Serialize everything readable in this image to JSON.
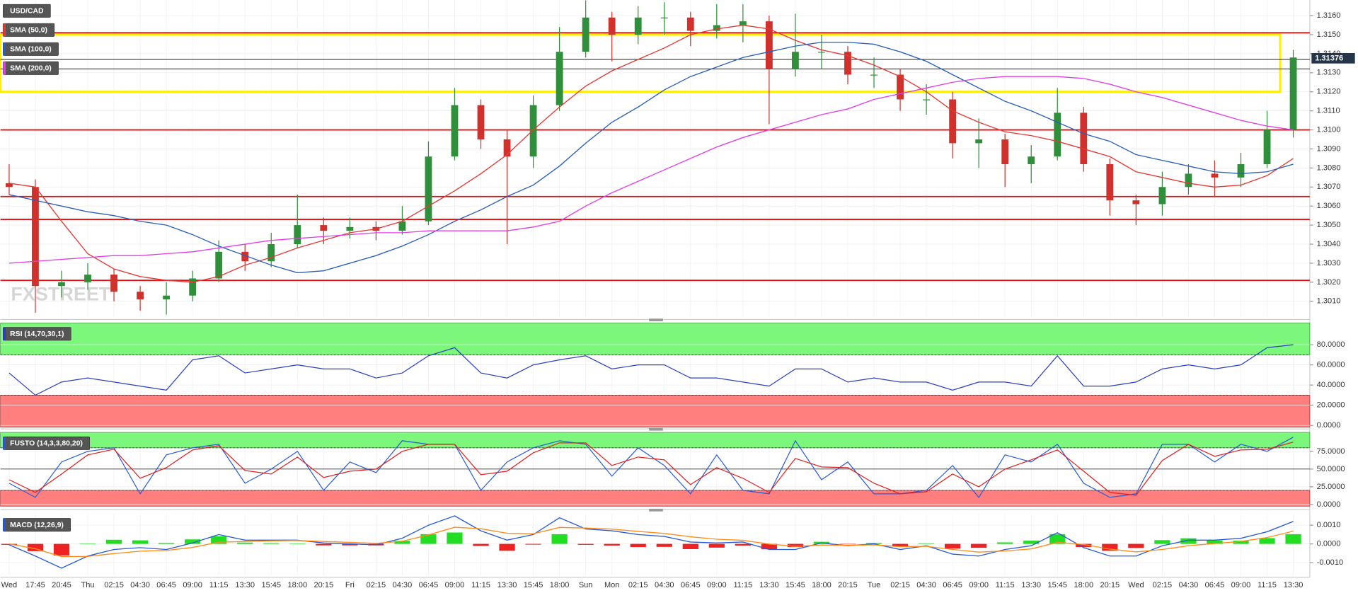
{
  "chart_data": [
    {
      "type": "candlestick",
      "title": "USD/CAD",
      "watermark": "FXSTREET",
      "categories": [
        "Wed",
        "17:45",
        "20:45",
        "Thu",
        "02:15",
        "04:30",
        "06:45",
        "09:00",
        "11:15",
        "13:30",
        "15:45",
        "18:00",
        "20:15",
        "Fri",
        "02:15",
        "04:30",
        "06:45",
        "09:00",
        "11:15",
        "13:30",
        "15:45",
        "18:00",
        "Sun",
        "Mon",
        "02:15",
        "04:30",
        "06:45",
        "09:00",
        "11:15",
        "13:30",
        "15:45",
        "18:00",
        "20:15",
        "Tue",
        "02:15",
        "04:30",
        "06:45",
        "09:00",
        "11:15",
        "13:30",
        "15:45",
        "18:00",
        "20:15",
        "Wed",
        "02:15",
        "04:30",
        "06:45",
        "09:00",
        "11:15",
        "13:30"
      ],
      "ohlc": [
        [
          1.3072,
          1.3082,
          1.3066,
          1.307
        ],
        [
          1.307,
          1.3074,
          1.3004,
          1.3018
        ],
        [
          1.3018,
          1.3026,
          1.3012,
          1.302
        ],
        [
          1.302,
          1.303,
          1.3016,
          1.3024
        ],
        [
          1.3024,
          1.3027,
          1.301,
          1.3015
        ],
        [
          1.3015,
          1.3018,
          1.3005,
          1.3011
        ],
        [
          1.3011,
          1.302,
          1.3003,
          1.3013
        ],
        [
          1.3013,
          1.3026,
          1.301,
          1.3022
        ],
        [
          1.3022,
          1.3042,
          1.302,
          1.3036
        ],
        [
          1.3036,
          1.304,
          1.3026,
          1.3031
        ],
        [
          1.3031,
          1.3046,
          1.3028,
          1.304
        ],
        [
          1.304,
          1.3066,
          1.3038,
          1.305
        ],
        [
          1.305,
          1.3054,
          1.304,
          1.3047
        ],
        [
          1.3047,
          1.3054,
          1.3043,
          1.3049
        ],
        [
          1.3049,
          1.3052,
          1.3042,
          1.3047
        ],
        [
          1.3047,
          1.306,
          1.3045,
          1.3052
        ],
        [
          1.3052,
          1.3094,
          1.305,
          1.3086
        ],
        [
          1.3086,
          1.3122,
          1.3084,
          1.3113
        ],
        [
          1.3113,
          1.3116,
          1.309,
          1.3095
        ],
        [
          1.3095,
          1.31,
          1.304,
          1.3086
        ],
        [
          1.3086,
          1.3118,
          1.308,
          1.3113
        ],
        [
          1.3113,
          1.3154,
          1.311,
          1.3141
        ],
        [
          1.3141,
          1.3168,
          1.3138,
          1.3159
        ],
        [
          1.3159,
          1.3162,
          1.3136,
          1.315
        ],
        [
          1.315,
          1.3165,
          1.3145,
          1.3159
        ],
        [
          1.3159,
          1.3167,
          1.315,
          1.3159
        ],
        [
          1.3159,
          1.3162,
          1.3144,
          1.3152
        ],
        [
          1.3152,
          1.3166,
          1.3148,
          1.3155
        ],
        [
          1.3155,
          1.3166,
          1.3146,
          1.3157
        ],
        [
          1.3157,
          1.316,
          1.3103,
          1.3132
        ],
        [
          1.3132,
          1.3161,
          1.3128,
          1.3141
        ],
        [
          1.3141,
          1.315,
          1.3132,
          1.3141
        ],
        [
          1.3141,
          1.3144,
          1.3124,
          1.3129
        ],
        [
          1.3129,
          1.3138,
          1.3122,
          1.3129
        ],
        [
          1.3129,
          1.3132,
          1.311,
          1.3116
        ],
        [
          1.3116,
          1.3124,
          1.3108,
          1.3116
        ],
        [
          1.3116,
          1.312,
          1.3085,
          1.3093
        ],
        [
          1.3093,
          1.3106,
          1.308,
          1.3095
        ],
        [
          1.3095,
          1.3098,
          1.307,
          1.3082
        ],
        [
          1.3082,
          1.3092,
          1.3072,
          1.3086
        ],
        [
          1.3086,
          1.3122,
          1.3084,
          1.3109
        ],
        [
          1.3109,
          1.3112,
          1.3078,
          1.3082
        ],
        [
          1.3082,
          1.3085,
          1.3055,
          1.3063
        ],
        [
          1.3063,
          1.3066,
          1.305,
          1.3061
        ],
        [
          1.3061,
          1.3078,
          1.3055,
          1.307
        ],
        [
          1.307,
          1.3082,
          1.3066,
          1.3077
        ],
        [
          1.3077,
          1.3084,
          1.3065,
          1.3075
        ],
        [
          1.3075,
          1.3088,
          1.307,
          1.3082
        ],
        [
          1.3082,
          1.311,
          1.308,
          1.31
        ],
        [
          1.31,
          1.3142,
          1.3096,
          1.3138
        ]
      ],
      "up_color": "#2f8f3a",
      "down_color": "#d0312d",
      "series": [
        {
          "name": "SMA (50,0)",
          "color": "#e53935",
          "values": [
            1.3072,
            1.307,
            1.3052,
            1.3035,
            1.3027,
            1.3023,
            1.3021,
            1.302,
            1.3023,
            1.3029,
            1.3033,
            1.3038,
            1.3042,
            1.3046,
            1.3048,
            1.3052,
            1.306,
            1.3068,
            1.3077,
            1.3087,
            1.31,
            1.3112,
            1.3123,
            1.3131,
            1.3137,
            1.3143,
            1.315,
            1.3153,
            1.3155,
            1.3153,
            1.3147,
            1.3142,
            1.3139,
            1.3134,
            1.3128,
            1.312,
            1.311,
            1.3104,
            1.3099,
            1.3097,
            1.3094,
            1.309,
            1.3086,
            1.3078,
            1.3075,
            1.3072,
            1.307,
            1.3071,
            1.3076,
            1.3085
          ]
        },
        {
          "name": "SMA (100,0)",
          "color": "#2b5fb8",
          "values": [
            1.3066,
            1.3063,
            1.306,
            1.3057,
            1.3055,
            1.3052,
            1.305,
            1.3045,
            1.3039,
            1.3034,
            1.3029,
            1.3025,
            1.3026,
            1.303,
            1.3034,
            1.3039,
            1.3045,
            1.3052,
            1.3058,
            1.3065,
            1.3071,
            1.3081,
            1.3093,
            1.3104,
            1.3112,
            1.3121,
            1.3128,
            1.3133,
            1.3138,
            1.3141,
            1.3144,
            1.3146,
            1.3146,
            1.3145,
            1.3141,
            1.3136,
            1.3129,
            1.3122,
            1.3115,
            1.311,
            1.3104,
            1.3098,
            1.3094,
            1.3087,
            1.3084,
            1.3081,
            1.3078,
            1.3077,
            1.3078,
            1.3082
          ]
        },
        {
          "name": "SMA (200,0)",
          "color": "#e040e0",
          "values": [
            1.303,
            1.3031,
            1.3032,
            1.3033,
            1.3034,
            1.3034,
            1.3035,
            1.3036,
            1.3038,
            1.304,
            1.3042,
            1.3043,
            1.3044,
            1.3045,
            1.3046,
            1.3046,
            1.3047,
            1.3047,
            1.3047,
            1.3047,
            1.3049,
            1.3052,
            1.306,
            1.3067,
            1.3073,
            1.3079,
            1.3085,
            1.3091,
            1.3096,
            1.31,
            1.3104,
            1.3108,
            1.3111,
            1.3116,
            1.3119,
            1.3122,
            1.3125,
            1.3127,
            1.3128,
            1.3128,
            1.3128,
            1.3127,
            1.3124,
            1.312,
            1.3117,
            1.3113,
            1.3109,
            1.3105,
            1.3102,
            1.31
          ]
        }
      ],
      "levels": [
        1.3151,
        1.31,
        1.3065,
        1.3053,
        1.3021
      ],
      "level_color": "#e01010",
      "reference_lines": [
        1.3137,
        1.3132
      ],
      "reference_color": "#222222",
      "zone": [
        1.312,
        1.315
      ],
      "zone_color": "#ffee00",
      "last_price": 1.31376,
      "ylim": [
        1.30018,
        1.31682
      ],
      "yticks": [
        {
          "value": 1.301,
          "label": "1.3010"
        },
        {
          "value": 1.302,
          "label": "1.3020"
        },
        {
          "value": 1.303,
          "label": "1.3030"
        },
        {
          "value": 1.304,
          "label": "1.3040"
        },
        {
          "value": 1.305,
          "label": "1.3050"
        },
        {
          "value": 1.306,
          "label": "1.3060"
        },
        {
          "value": 1.307,
          "label": "1.3070"
        },
        {
          "value": 1.308,
          "label": "1.3080"
        },
        {
          "value": 1.309,
          "label": "1.3090"
        },
        {
          "value": 1.31,
          "label": "1.3100"
        },
        {
          "value": 1.311,
          "label": "1.3110"
        },
        {
          "value": 1.312,
          "label": "1.3120"
        },
        {
          "value": 1.313,
          "label": "1.3130"
        },
        {
          "value": 1.314,
          "label": "1.3140"
        },
        {
          "value": 1.315,
          "label": "1.3150"
        },
        {
          "value": 1.316,
          "label": "1.3160"
        }
      ],
      "grid": true
    },
    {
      "type": "oscillator",
      "title": "RSI (14,70,30,1)",
      "overbought": 70,
      "oversold": 30,
      "series": [
        {
          "color": "#2a3fbf",
          "values": [
            52,
            30,
            43,
            47,
            43,
            39,
            35,
            65,
            69,
            52,
            56,
            60,
            56,
            56,
            47,
            52,
            69,
            77,
            52,
            47,
            60,
            65,
            69,
            56,
            60,
            60,
            47,
            47,
            43,
            39,
            56,
            56,
            43,
            47,
            43,
            43,
            35,
            43,
            43,
            39,
            69,
            39,
            39,
            43,
            56,
            60,
            56,
            60,
            77,
            80
          ]
        }
      ],
      "ylim": [
        -1.7,
        101.5
      ],
      "yticks": [
        {
          "value": 0,
          "label": "0.0000"
        },
        {
          "value": 20,
          "label": "20.0000"
        },
        {
          "value": 40,
          "label": "40.0000"
        },
        {
          "value": 60,
          "label": "60.0000"
        },
        {
          "value": 80,
          "label": "80.0000"
        }
      ],
      "grid": true
    },
    {
      "type": "oscillator",
      "title": "FUSTO (14,3,3,80,20)",
      "overbought": 80,
      "oversold": 20,
      "midline": 50,
      "series": [
        {
          "color": "#2a5bd7",
          "values": [
            30,
            10,
            60,
            75,
            80,
            15,
            70,
            80,
            85,
            30,
            50,
            75,
            20,
            60,
            45,
            90,
            85,
            85,
            20,
            60,
            80,
            90,
            85,
            40,
            80,
            55,
            15,
            70,
            20,
            15,
            90,
            35,
            60,
            15,
            15,
            20,
            55,
            10,
            70,
            60,
            85,
            30,
            10,
            15,
            85,
            85,
            60,
            85,
            75,
            95
          ]
        },
        {
          "color": "#e02020",
          "values": [
            35,
            17,
            43,
            70,
            78,
            37,
            52,
            77,
            83,
            48,
            43,
            67,
            38,
            47,
            50,
            75,
            85,
            85,
            42,
            47,
            73,
            87,
            87,
            55,
            67,
            63,
            28,
            52,
            37,
            17,
            65,
            53,
            52,
            30,
            15,
            18,
            43,
            25,
            50,
            63,
            77,
            47,
            17,
            13,
            62,
            85,
            68,
            77,
            78,
            88
          ]
        }
      ],
      "ylim": [
        -2.4,
        101.8
      ],
      "yticks": [
        {
          "value": 0,
          "label": "0.0000"
        },
        {
          "value": 25,
          "label": "25.0000"
        },
        {
          "value": 50,
          "label": "50.0000"
        },
        {
          "value": 75,
          "label": "75.0000"
        }
      ],
      "grid": true
    },
    {
      "type": "macd",
      "title": "MACD (12,26,9)",
      "series": [
        {
          "color": "#2a5bd7",
          "values": [
            -5e-05,
            -0.00065,
            -0.0013,
            -0.00065,
            -0.0003,
            -0.0002,
            -0.0003,
            5e-05,
            0.0005,
            0.0002,
            0.0002,
            0.0002,
            5e-05,
            0,
            -5e-05,
            0.0003,
            0.001,
            0.0015,
            0.0007,
            0.0002,
            0.0005,
            0.0014,
            0.0008,
            0.0007,
            0.0005,
            0.0004,
            0.0001,
            5e-05,
            0.0001,
            -0.0003,
            -0.0003,
            5e-05,
            -0.0001,
            0,
            -0.0003,
            -0.0001,
            -0.00055,
            -0.00065,
            -0.0003,
            -0.0001,
            0.0006,
            -0.0002,
            -0.00065,
            -0.00065,
            -0.0001,
            0.0002,
            0.0002,
            0.0003,
            0.00065,
            0.0012
          ]
        },
        {
          "color": "#ff8c1a",
          "values": [
            0,
            -0.00026,
            -0.00068,
            -0.00067,
            -0.00052,
            -0.00039,
            -0.00035,
            -0.00019,
            9e-05,
            0.00013,
            0.00016,
            0.00018,
            0.00013,
            8e-05,
            3e-05,
            0.00014,
            0.00048,
            0.00089,
            0.00081,
            0.00057,
            0.00054,
            0.00088,
            0.00085,
            0.00079,
            0.00067,
            0.00056,
            0.00038,
            0.00025,
            0.00019,
            -1e-05,
            -0.00013,
            -6e-05,
            -8e-05,
            -5e-05,
            -0.00015,
            -0.00013,
            -0.0003,
            -0.00044,
            -0.00038,
            -0.00027,
            8e-05,
            -3e-05,
            -0.00028,
            -0.00043,
            -0.0003,
            -0.0001,
            2e-05,
            0.00013,
            0.00034,
            0.00068
          ]
        }
      ],
      "histogram": [
        -5e-05,
        -0.00039,
        -0.00062,
        2e-05,
        0.00022,
        0.00019,
        5e-05,
        0.00024,
        0.00041,
        7e-05,
        4e-05,
        2e-05,
        -8e-05,
        -8e-05,
        -8e-05,
        0.00016,
        0.00052,
        0.00061,
        -0.00011,
        -0.00037,
        -4e-05,
        0.00052,
        -5e-05,
        -9e-05,
        -0.00017,
        -0.00016,
        -0.00028,
        -0.0002,
        -9e-05,
        -0.00029,
        -0.00017,
        0.00011,
        -2e-05,
        5e-05,
        -0.00015,
        3e-05,
        -0.00025,
        -0.00021,
        8e-05,
        0.00017,
        0.00052,
        -0.00017,
        -0.00037,
        -0.00022,
        0.0002,
        0.0003,
        0.00018,
        0.00017,
        0.00031,
        0.00052
      ],
      "positive_color": "#22dd22",
      "negative_color": "#ee2222",
      "ylim": [
        -0.0017,
        0.0016
      ],
      "yticks": [
        {
          "value": -0.001,
          "label": "-0.0010"
        },
        {
          "value": 0,
          "label": "0.0000"
        },
        {
          "value": 0.001,
          "label": "0.0010"
        }
      ],
      "grid": true
    }
  ]
}
